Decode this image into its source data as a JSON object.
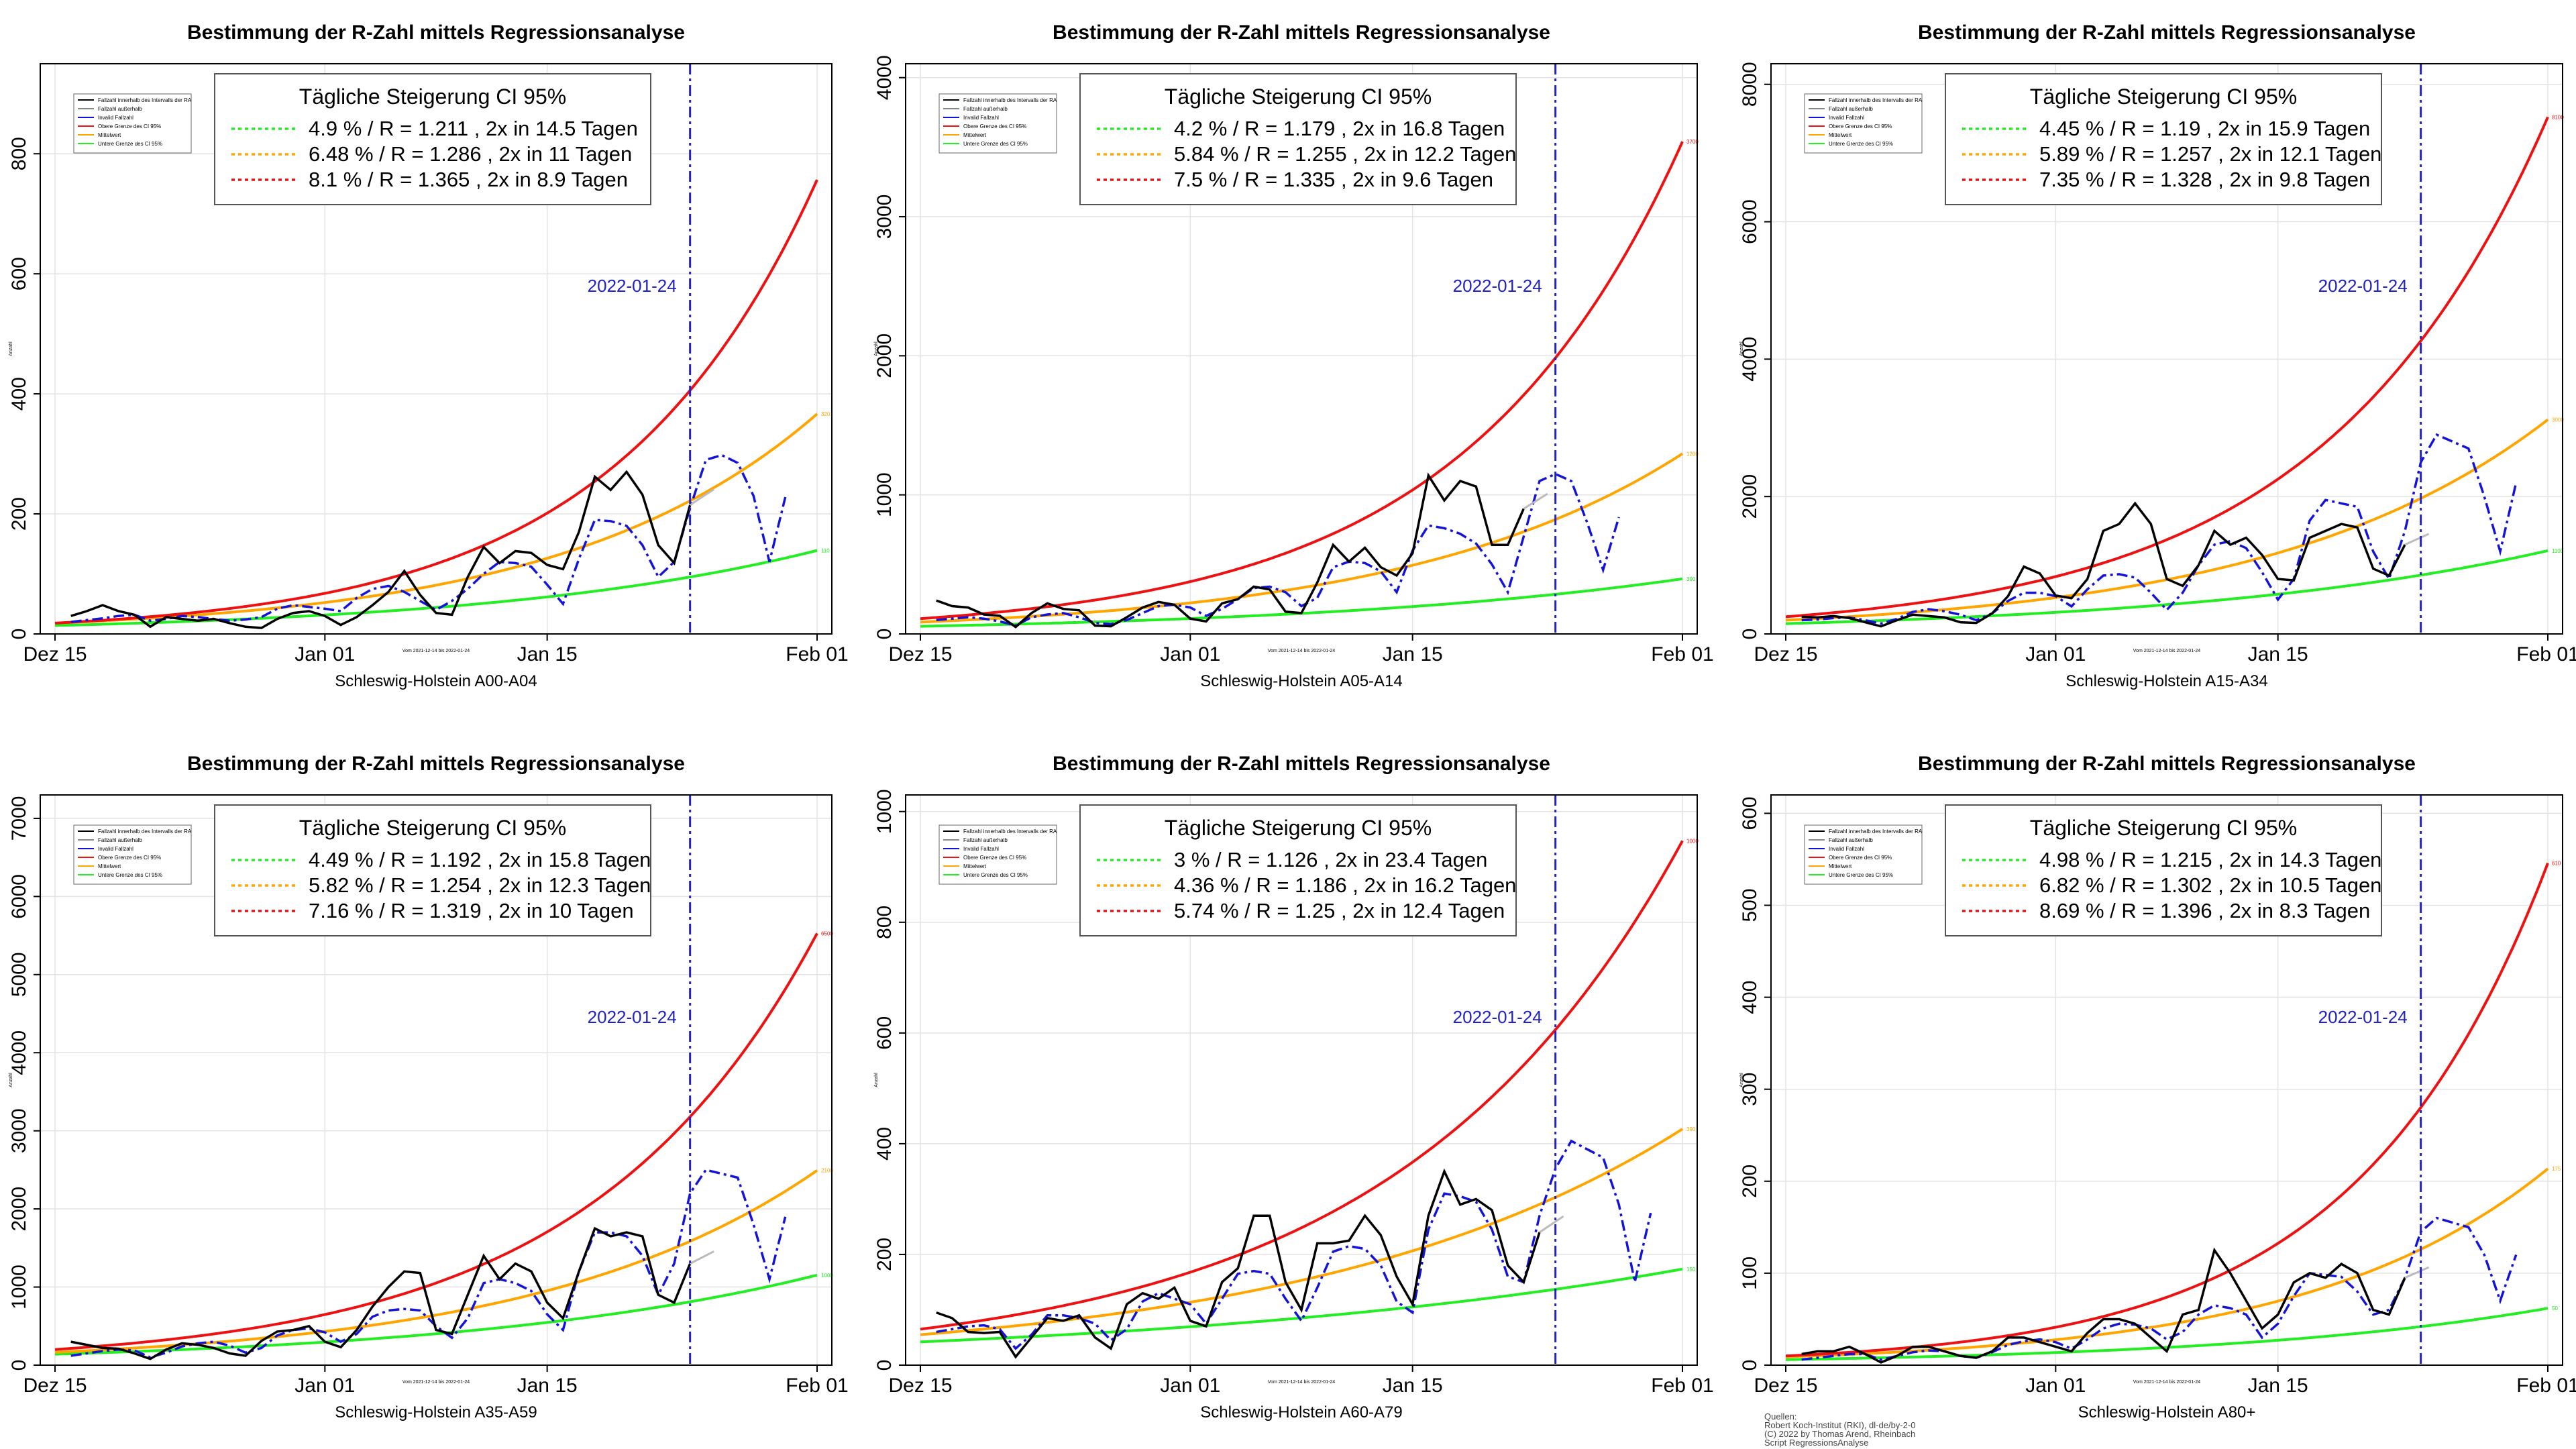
{
  "shared": {
    "title": "Bestimmung der R-Zahl mittels Regressionsanalyse",
    "legend_header": "Tägliche Steigerung CI  95%",
    "date_marker": "2022-01-24",
    "x_ticks": [
      "Dez 15",
      "Jan 01",
      "Jan 15",
      "Feb 01"
    ],
    "x_tick_days": [
      0,
      17,
      31,
      48
    ],
    "marker_day": 40,
    "date_range_note": "Vom 2021-12-14 bis 2022-01-24",
    "small_legend": [
      "Fallzahl innerhalb des Intervalls der RA",
      "Fallzahl außerhalb",
      "Invalid Fallzahl",
      "Obere Grenze des CI 95%",
      "Mittelwert",
      "Untere Grenze des CI 95%"
    ],
    "source_lines": [
      "Quellen:",
      "Robert Koch-Institut (RKI), dl-de/by-2-0",
      "(C) 2022 by Thomas Arend, Rheinbach",
      "Script RegressionsAnalyse"
    ],
    "colors": {
      "upper": "#ee1111",
      "mean": "#ffa500",
      "lower": "#22ee22",
      "cases": "#000000",
      "predicted": "#1414d8",
      "marker": "#2020cc",
      "projection": "#bbbbbb",
      "grid": "#e3e3e3"
    }
  },
  "chart_data": [
    {
      "type": "line",
      "subtitle": "Schleswig-Holstein A00-A04",
      "ylabel": "Anzahl",
      "ylim": [
        0,
        950
      ],
      "yticks": [
        0,
        200,
        400,
        600,
        800
      ],
      "x_day_range": [
        0,
        48
      ],
      "legend": [
        "4.9 % / R = 1.211 , 2x in 14.5 Tagen",
        "6.48 % / R = 1.286 , 2x in 11 Tagen",
        "8.1 % / R = 1.365 , 2x in 8.9 Tagen"
      ],
      "curves": {
        "upper": [
          18,
          8.1
        ],
        "mean": [
          18,
          6.48
        ],
        "lower": [
          14,
          4.9
        ]
      },
      "end_labels": {
        "upper": "",
        "mean": "320",
        "lower": "110"
      },
      "cases": [
        30,
        38,
        48,
        38,
        32,
        12,
        28,
        25,
        22,
        25,
        18,
        12,
        10,
        25,
        35,
        38,
        30,
        15,
        28,
        48,
        70,
        105,
        65,
        35,
        32,
        95,
        145,
        118,
        138,
        135,
        115,
        108,
        170,
        262,
        240,
        270,
        232,
        148,
        118,
        215
      ],
      "predicted": [
        20,
        23,
        26,
        30,
        32,
        22,
        25,
        30,
        28,
        25,
        22,
        24,
        28,
        42,
        48,
        45,
        42,
        38,
        60,
        75,
        80,
        70,
        55,
        40,
        55,
        75,
        100,
        120,
        118,
        112,
        82,
        50,
        125,
        190,
        188,
        180,
        148,
        95,
        120,
        210,
        290,
        298,
        285,
        230,
        120,
        228
      ]
    },
    {
      "type": "line",
      "subtitle": "Schleswig-Holstein A05-A14",
      "ylabel": "Anzahl",
      "ylim": [
        0,
        4100
      ],
      "yticks": [
        0,
        1000,
        2000,
        3000,
        4000
      ],
      "x_day_range": [
        0,
        48
      ],
      "legend": [
        "4.2 % / R = 1.179 , 2x in 16.8 Tagen",
        "5.84 % / R = 1.255 , 2x in 12.2 Tagen",
        "7.5 % / R = 1.335 , 2x in 9.6 Tagen"
      ],
      "curves": {
        "upper": [
          110,
          7.5
        ],
        "mean": [
          85,
          5.84
        ],
        "lower": [
          55,
          4.2
        ]
      },
      "end_labels": {
        "upper": "3700",
        "mean": "1200",
        "lower": "390"
      },
      "cases": [
        240,
        200,
        190,
        140,
        130,
        50,
        150,
        220,
        180,
        170,
        60,
        55,
        120,
        190,
        230,
        210,
        110,
        90,
        220,
        250,
        340,
        320,
        160,
        150,
        370,
        640,
        520,
        620,
        480,
        420,
        580,
        1140,
        960,
        1100,
        1060,
        640,
        640,
        900
      ],
      "predicted": [
        100,
        110,
        120,
        110,
        90,
        60,
        120,
        140,
        150,
        120,
        80,
        70,
        100,
        150,
        200,
        210,
        190,
        130,
        180,
        250,
        330,
        340,
        300,
        200,
        260,
        480,
        520,
        510,
        450,
        300,
        600,
        780,
        760,
        720,
        650,
        500,
        300,
        700,
        1100,
        1150,
        1100,
        800,
        460,
        840
      ]
    },
    {
      "type": "line",
      "subtitle": "Schleswig-Holstein A15-A34",
      "ylabel": "Anzahl",
      "ylim": [
        0,
        8300
      ],
      "yticks": [
        0,
        2000,
        4000,
        6000,
        8000
      ],
      "x_day_range": [
        0,
        48
      ],
      "legend": [
        "4.45 % / R = 1.19 , 2x in 15.9 Tagen",
        "5.89 % / R = 1.257 , 2x in 12.1 Tagen",
        "7.35 % / R = 1.328 , 2x in 9.8 Tagen"
      ],
      "curves": {
        "upper": [
          250,
          7.35
        ],
        "mean": [
          200,
          5.89
        ],
        "lower": [
          150,
          4.45
        ]
      },
      "end_labels": {
        "upper": "8100",
        "mean": "3000",
        "lower": "1100"
      },
      "cases": [
        250,
        240,
        260,
        230,
        170,
        110,
        200,
        280,
        260,
        240,
        170,
        160,
        300,
        550,
        980,
        880,
        560,
        520,
        800,
        1500,
        1600,
        1900,
        1600,
        800,
        700,
        1000,
        1500,
        1300,
        1400,
        1150,
        800,
        780,
        1400,
        1500,
        1600,
        1550,
        950,
        850,
        1300
      ],
      "predicted": [
        200,
        210,
        230,
        240,
        200,
        150,
        220,
        320,
        360,
        330,
        280,
        200,
        300,
        480,
        600,
        600,
        550,
        400,
        650,
        850,
        870,
        820,
        600,
        350,
        600,
        1000,
        1300,
        1350,
        1250,
        900,
        500,
        800,
        1650,
        1950,
        1900,
        1850,
        1200,
        800,
        1500,
        2500,
        2900,
        2800,
        2700,
        2000,
        1200,
        2200
      ]
    },
    {
      "type": "line",
      "subtitle": "Schleswig-Holstein A35-A59",
      "ylabel": "Anzahl",
      "ylim": [
        0,
        7300
      ],
      "yticks": [
        0,
        1000,
        2000,
        3000,
        4000,
        5000,
        6000,
        7000
      ],
      "x_day_range": [
        0,
        48
      ],
      "legend": [
        "4.49 % / R = 1.192 , 2x in 15.8 Tagen",
        "5.82 % / R = 1.254 , 2x in 12.3 Tagen",
        "7.16 % / R = 1.319 , 2x in 10 Tagen"
      ],
      "curves": {
        "upper": [
          200,
          7.16
        ],
        "mean": [
          165,
          5.82
        ],
        "lower": [
          140,
          4.49
        ]
      },
      "end_labels": {
        "upper": "6500",
        "mean": "2100",
        "lower": "1000"
      },
      "cases": [
        300,
        260,
        220,
        210,
        150,
        80,
        200,
        280,
        260,
        220,
        150,
        120,
        310,
        430,
        450,
        500,
        300,
        230,
        450,
        750,
        1000,
        1200,
        1180,
        450,
        400,
        900,
        1400,
        1100,
        1300,
        1200,
        800,
        600,
        1200,
        1750,
        1650,
        1700,
        1650,
        900,
        800,
        1300
      ],
      "predicted": [
        120,
        150,
        180,
        200,
        190,
        100,
        160,
        240,
        280,
        300,
        250,
        160,
        220,
        380,
        450,
        470,
        420,
        300,
        400,
        620,
        700,
        720,
        700,
        500,
        350,
        600,
        1050,
        1100,
        1050,
        950,
        650,
        450,
        1200,
        1700,
        1700,
        1650,
        1400,
        900,
        1300,
        2200,
        2500,
        2450,
        2400,
        1800,
        1100,
        1900
      ]
    },
    {
      "type": "line",
      "subtitle": "Schleswig-Holstein A60-A79",
      "ylabel": "Anzahl",
      "ylim": [
        0,
        1030
      ],
      "yticks": [
        0,
        200,
        400,
        600,
        800,
        1000
      ],
      "x_day_range": [
        0,
        48
      ],
      "legend": [
        "3 % / R = 1.126 , 2x in 23.4 Tagen",
        "4.36 % / R = 1.186 , 2x in 16.2 Tagen",
        "5.74 % / R = 1.25 , 2x in 12.4 Tagen"
      ],
      "curves": {
        "upper": [
          65,
          5.74
        ],
        "mean": [
          55,
          4.36
        ],
        "lower": [
          42,
          3.0
        ]
      },
      "end_labels": {
        "upper": "1000",
        "mean": "390",
        "lower": "150"
      },
      "cases": [
        95,
        85,
        60,
        58,
        60,
        15,
        50,
        85,
        80,
        90,
        50,
        30,
        110,
        130,
        120,
        140,
        80,
        70,
        150,
        175,
        270,
        270,
        150,
        100,
        220,
        220,
        225,
        270,
        235,
        160,
        110,
        270,
        350,
        290,
        300,
        280,
        180,
        150,
        240
      ],
      "predicted": [
        60,
        65,
        70,
        72,
        65,
        30,
        55,
        90,
        90,
        85,
        75,
        45,
        65,
        115,
        130,
        120,
        110,
        75,
        120,
        165,
        170,
        165,
        120,
        80,
        140,
        205,
        215,
        210,
        180,
        115,
        95,
        245,
        310,
        305,
        295,
        245,
        160,
        150,
        270,
        355,
        405,
        390,
        375,
        290,
        150,
        275
      ]
    },
    {
      "type": "line",
      "subtitle": "Schleswig-Holstein A80+",
      "ylabel": "Anzahl",
      "ylim": [
        0,
        620
      ],
      "yticks": [
        0,
        100,
        200,
        300,
        400,
        500,
        600
      ],
      "x_day_range": [
        0,
        48
      ],
      "legend": [
        "4.98 % / R = 1.215 , 2x in 14.3 Tagen",
        "6.82 % / R = 1.302 , 2x in 10.5 Tagen",
        "8.69 % / R = 1.396 , 2x in 8.3 Tagen"
      ],
      "curves": {
        "upper": [
          10,
          8.69
        ],
        "mean": [
          9,
          6.82
        ],
        "lower": [
          6,
          4.98
        ]
      },
      "end_labels": {
        "upper": "610",
        "mean": "175",
        "lower": "50"
      },
      "cases": [
        12,
        15,
        15,
        20,
        12,
        3,
        10,
        20,
        20,
        15,
        10,
        8,
        15,
        30,
        30,
        25,
        20,
        15,
        35,
        50,
        50,
        45,
        30,
        15,
        55,
        60,
        125,
        100,
        70,
        40,
        55,
        90,
        100,
        95,
        110,
        100,
        60,
        55,
        95
      ],
      "predicted": [
        6,
        8,
        10,
        12,
        12,
        6,
        10,
        14,
        16,
        15,
        10,
        8,
        14,
        22,
        26,
        28,
        25,
        18,
        28,
        40,
        45,
        44,
        40,
        28,
        36,
        55,
        65,
        62,
        55,
        30,
        45,
        75,
        100,
        98,
        96,
        80,
        55,
        60,
        95,
        145,
        160,
        155,
        150,
        120,
        70,
        120
      ]
    }
  ]
}
